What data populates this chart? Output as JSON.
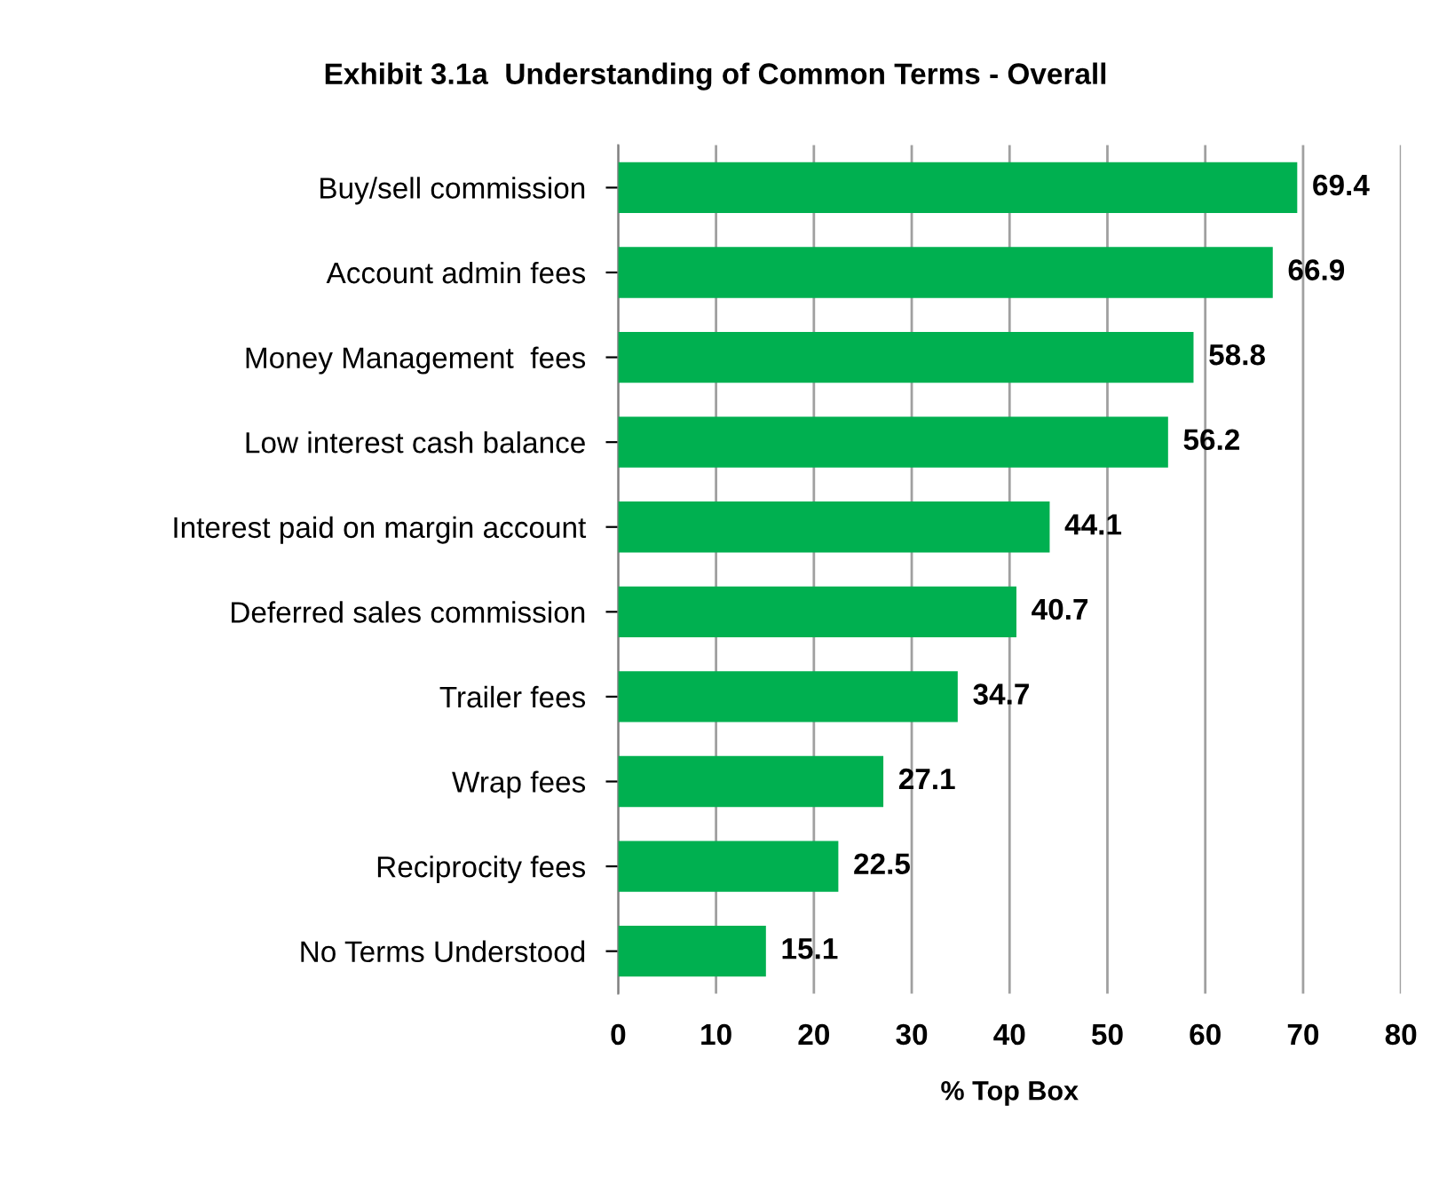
{
  "chart_data": {
    "type": "bar",
    "orientation": "horizontal",
    "title": "Exhibit 3.1a  Understanding of Common Terms - Overall",
    "xlabel": "% Top Box",
    "categories": [
      "Buy/sell commission",
      "Account admin fees",
      "Money Management  fees",
      "Low interest cash balance",
      "Interest paid on margin account",
      "Deferred sales commission",
      "Trailer fees",
      "Wrap fees",
      "Reciprocity fees",
      "No Terms Understood"
    ],
    "values": [
      69.4,
      66.9,
      58.8,
      56.2,
      44.1,
      40.7,
      34.7,
      27.1,
      22.5,
      15.1
    ],
    "color": "#00b050",
    "xlim": [
      0,
      80
    ],
    "xticks": [
      0,
      10,
      20,
      30,
      40,
      50,
      60,
      70,
      80
    ],
    "grid": "x",
    "data_labels": true
  }
}
